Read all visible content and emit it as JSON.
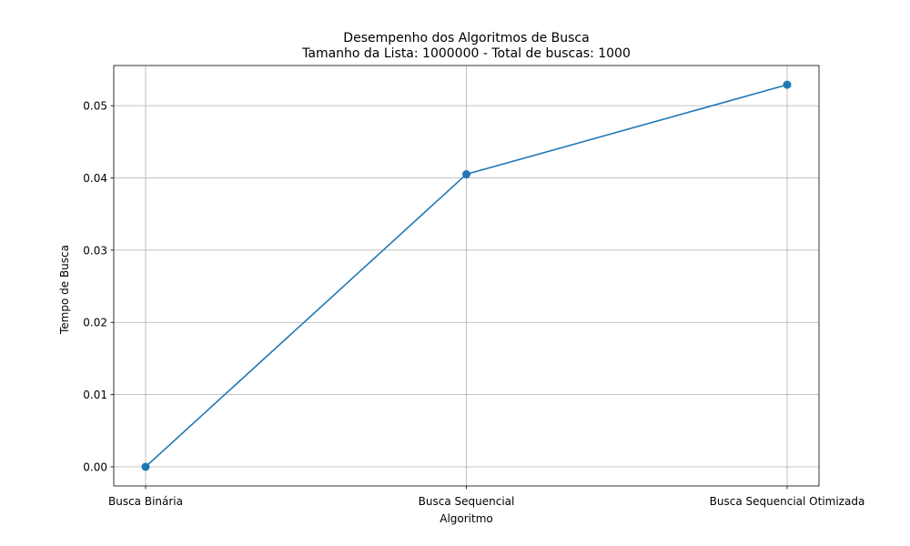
{
  "chart_data": {
    "type": "line",
    "title": "Desempenho dos Algoritmos de Busca",
    "subtitle": "Tamanho da Lista: 1000000 - Total de buscas: 1000",
    "xlabel": "Algoritmo",
    "ylabel": "Tempo de Busca",
    "categories": [
      "Busca Binária",
      "Busca Sequencial",
      "Busca Sequencial Otimizada"
    ],
    "series": [
      {
        "values": [
          0.0,
          0.0405,
          0.0529
        ],
        "color": "#1f77b4",
        "marker": "circle"
      }
    ],
    "ylim": [
      -0.00265,
      0.05556
    ],
    "yticks": [
      0.0,
      0.01,
      0.02,
      0.03,
      0.04,
      0.05
    ],
    "ytick_labels": [
      "0.00",
      "0.01",
      "0.02",
      "0.03",
      "0.04",
      "0.05"
    ],
    "grid": true,
    "legend": false
  }
}
